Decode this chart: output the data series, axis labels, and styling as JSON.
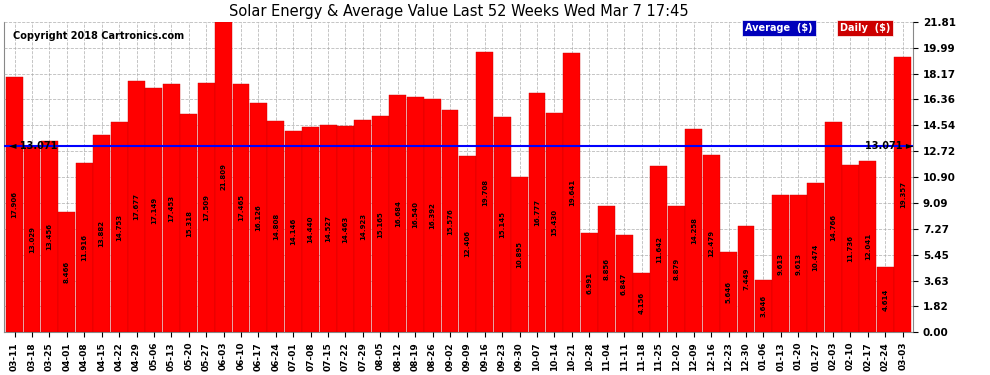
{
  "title": "Solar Energy & Average Value Last 52 Weeks Wed Mar 7 17:45",
  "copyright": "Copyright 2018 Cartronics.com",
  "average_line": 13.071,
  "average_label": "13.071",
  "ylim": [
    0,
    21.81
  ],
  "yticks": [
    0.0,
    1.82,
    3.63,
    5.45,
    7.27,
    9.09,
    10.9,
    12.72,
    14.54,
    16.36,
    18.17,
    19.99,
    21.81
  ],
  "bar_color": "#ff0000",
  "background_color": "#ffffff",
  "plot_bg_color": "#ffffff",
  "grid_color": "#aaaaaa",
  "average_line_color": "#0000ff",
  "legend_avg_bg": "#0000cc",
  "legend_daily_bg": "#cc0000",
  "categories": [
    "03-11",
    "03-18",
    "03-25",
    "04-01",
    "04-08",
    "04-15",
    "04-22",
    "04-29",
    "05-06",
    "05-13",
    "05-20",
    "05-27",
    "06-03",
    "06-10",
    "06-17",
    "06-24",
    "07-01",
    "07-08",
    "07-15",
    "07-22",
    "07-29",
    "08-05",
    "08-12",
    "08-19",
    "08-26",
    "09-02",
    "09-09",
    "09-16",
    "09-23",
    "09-30",
    "10-07",
    "10-14",
    "10-21",
    "10-28",
    "11-04",
    "11-11",
    "11-18",
    "11-25",
    "12-02",
    "12-09",
    "12-16",
    "12-23",
    "12-30",
    "01-06",
    "01-13",
    "01-20",
    "01-27",
    "02-03",
    "02-10",
    "02-17",
    "02-24",
    "03-03"
  ],
  "values": [
    17.906,
    13.029,
    13.456,
    8.466,
    11.916,
    13.882,
    14.753,
    17.677,
    17.149,
    17.453,
    15.318,
    17.509,
    21.809,
    17.465,
    16.126,
    14.808,
    14.146,
    14.44,
    14.527,
    14.463,
    14.923,
    15.165,
    16.684,
    16.54,
    16.392,
    15.576,
    12.406,
    19.708,
    15.145,
    10.895,
    16.777,
    15.43,
    19.641,
    6.991,
    8.856,
    6.847,
    4.156,
    11.642,
    8.879,
    14.258,
    12.479,
    5.646,
    7.449,
    3.646,
    9.613,
    9.613,
    10.474,
    14.766,
    11.736,
    12.041,
    4.614,
    19.357
  ],
  "value_labels": [
    "17.906",
    "13.029",
    "13.456",
    "8.466",
    "11.916",
    "13.882",
    "14.753",
    "17.677",
    "17.149",
    "17.453",
    "15.318",
    "17.509",
    "21.809",
    "17.465",
    "16.126",
    "14.808",
    "14.146",
    "14.440",
    "14.527",
    "14.463",
    "14.923",
    "15.165",
    "16.684",
    "16.540",
    "16.392",
    "15.576",
    "12.406",
    "19.708",
    "15.145",
    "10.895",
    "16.777",
    "15.430",
    "19.641",
    "6.991",
    "8.856",
    "6.847",
    "4.156",
    "11.642",
    "8.879",
    "14.258",
    "12.479",
    "5.646",
    "7.449",
    "3.646",
    "9.613",
    "9.613",
    "10.474",
    "14.766",
    "11.736",
    "12.041",
    "4.614",
    "19.357"
  ]
}
